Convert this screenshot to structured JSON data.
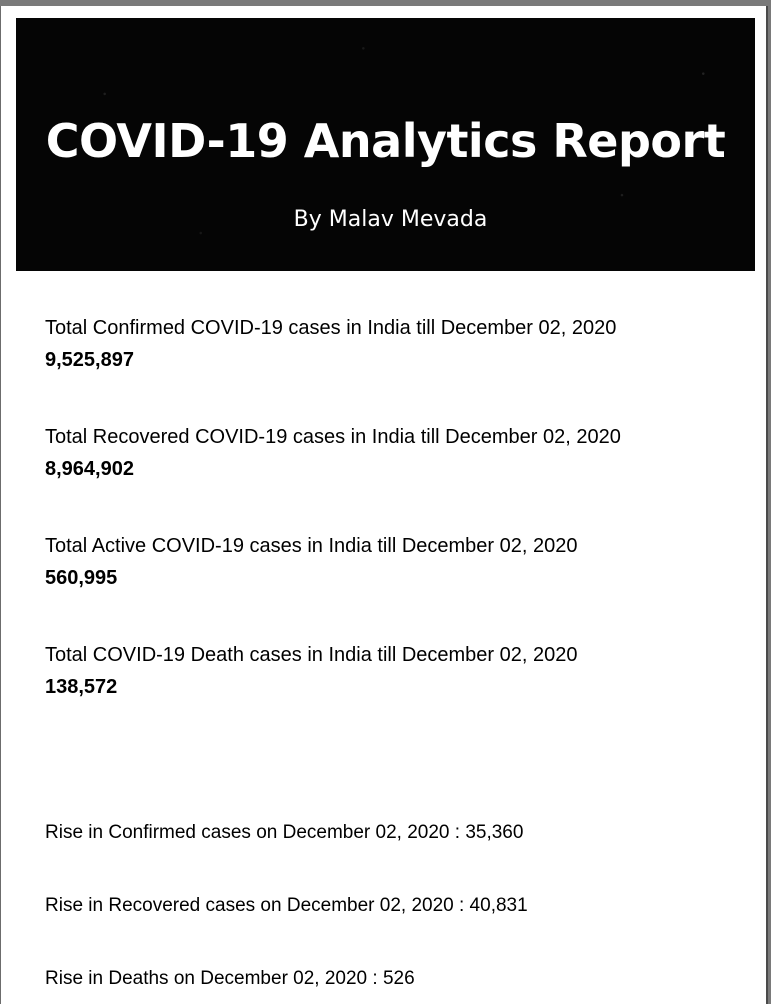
{
  "header": {
    "title": "COVID-19 Analytics Report",
    "author": "By Malav Mevada"
  },
  "stats": [
    {
      "label": "Total Confirmed COVID-19 cases in India till December 02, 2020",
      "value": "9,525,897"
    },
    {
      "label": "Total Recovered COVID-19 cases in India till December 02, 2020",
      "value": "8,964,902"
    },
    {
      "label": "Total Active COVID-19 cases in India till December 02, 2020",
      "value": "560,995"
    },
    {
      "label": "Total COVID-19 Death cases in India till December 02, 2020",
      "value": "138,572"
    }
  ],
  "rises": [
    "Rise in Confirmed cases on December 02, 2020 : 35,360",
    "Rise in Recovered cases on December 02, 2020 : 40,831",
    "Rise in Deaths on December 02, 2020 : 526"
  ]
}
